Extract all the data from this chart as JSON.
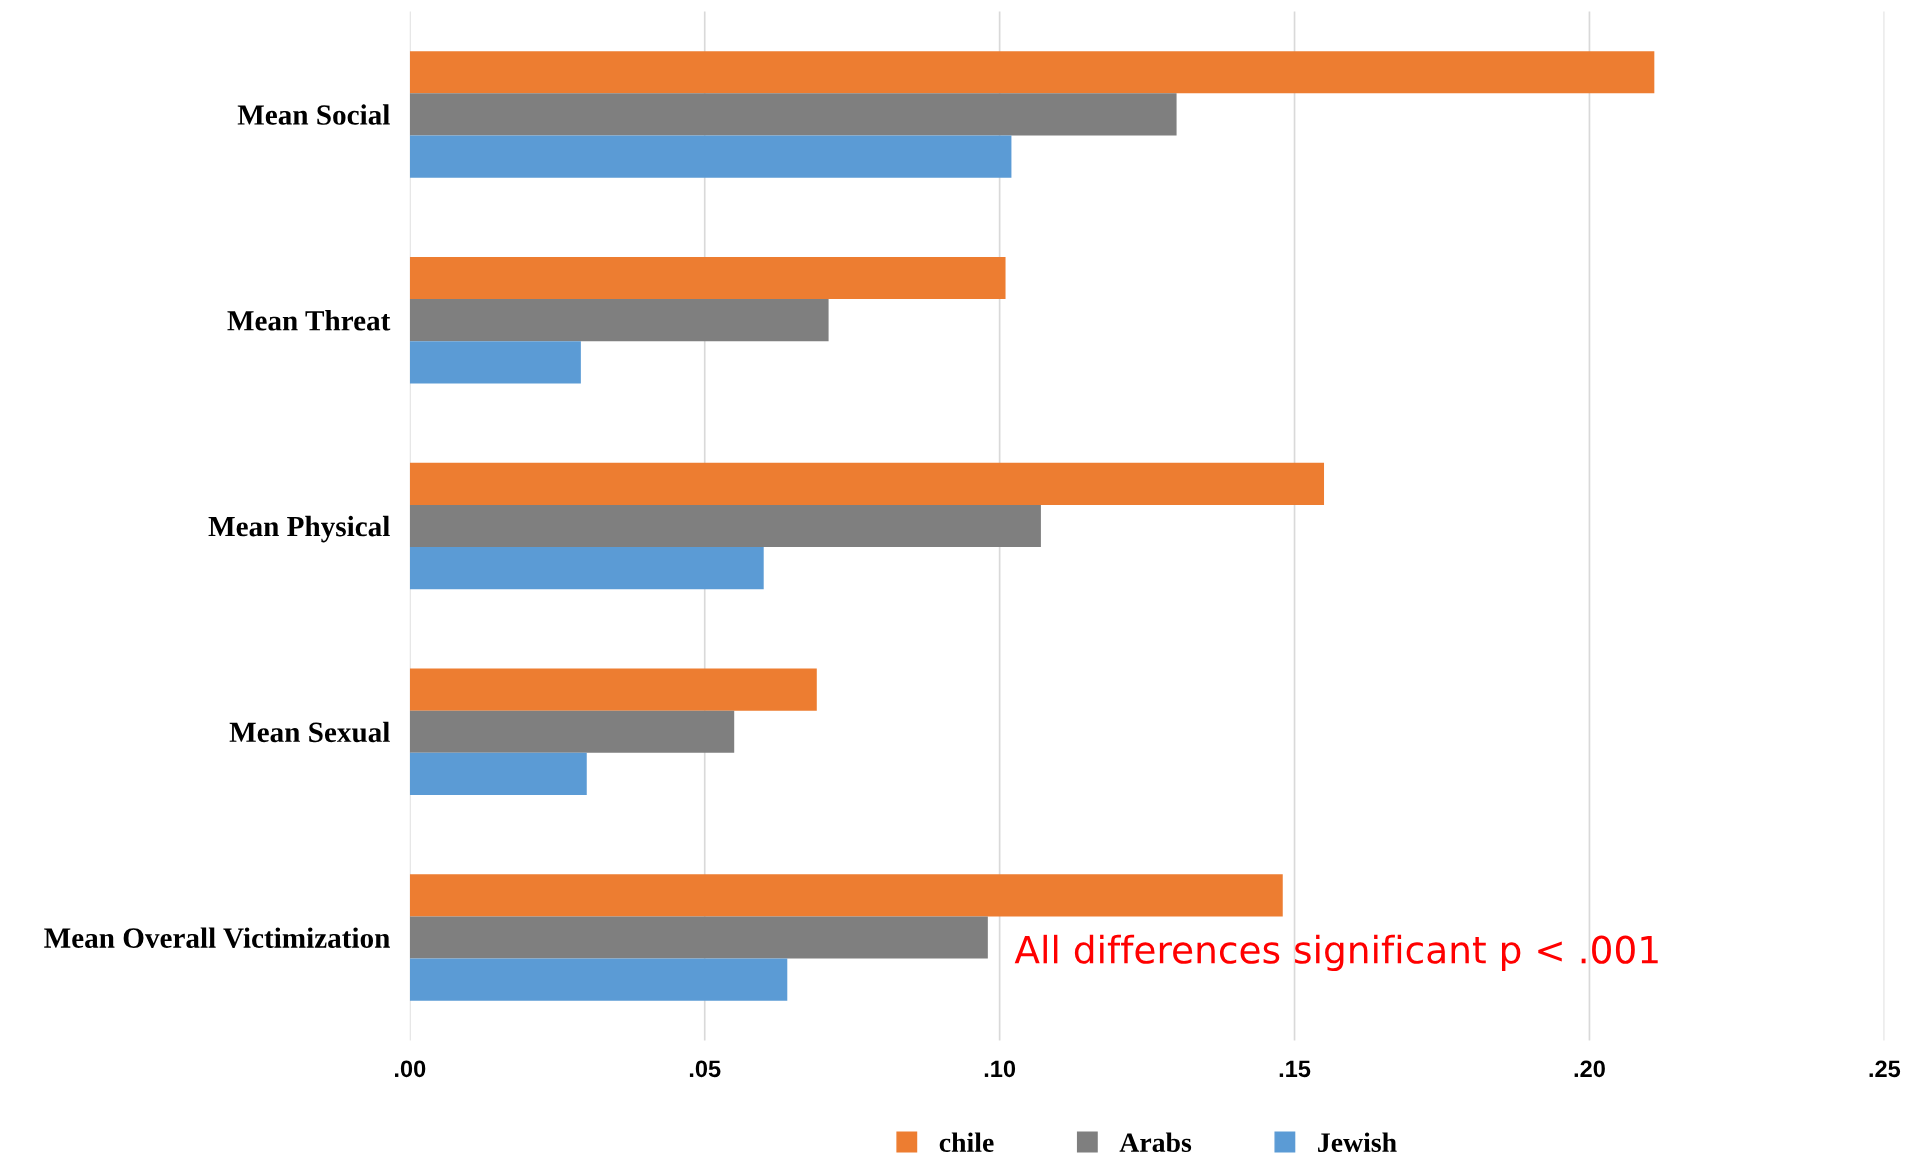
{
  "chart_data": {
    "type": "bar",
    "orientation": "horizontal",
    "categories": [
      "Mean Social",
      "Mean Threat",
      "Mean Physical",
      "Mean Sexual",
      "Mean Overall Victimization"
    ],
    "series": [
      {
        "name": "chile",
        "color": "#ed7d31",
        "values": [
          0.211,
          0.101,
          0.155,
          0.069,
          0.148
        ]
      },
      {
        "name": "Arabs",
        "color": "#7f7f7f",
        "values": [
          0.13,
          0.071,
          0.107,
          0.055,
          0.098
        ]
      },
      {
        "name": "Jewish",
        "color": "#5b9bd5",
        "values": [
          0.102,
          0.029,
          0.06,
          0.03,
          0.064
        ]
      }
    ],
    "xlim": [
      0,
      0.25
    ],
    "xticks": [
      {
        "value": 0,
        "label": ".00"
      },
      {
        "value": 0.05,
        "label": ".05"
      },
      {
        "value": 0.1,
        "label": ".10"
      },
      {
        "value": 0.15,
        "label": ".15"
      },
      {
        "value": 0.2,
        "label": ".20"
      },
      {
        "value": 0.25,
        "label": ".25"
      }
    ],
    "grid": "x",
    "legend": "bottom",
    "annotations": [
      "All differences significant p < .001"
    ]
  }
}
